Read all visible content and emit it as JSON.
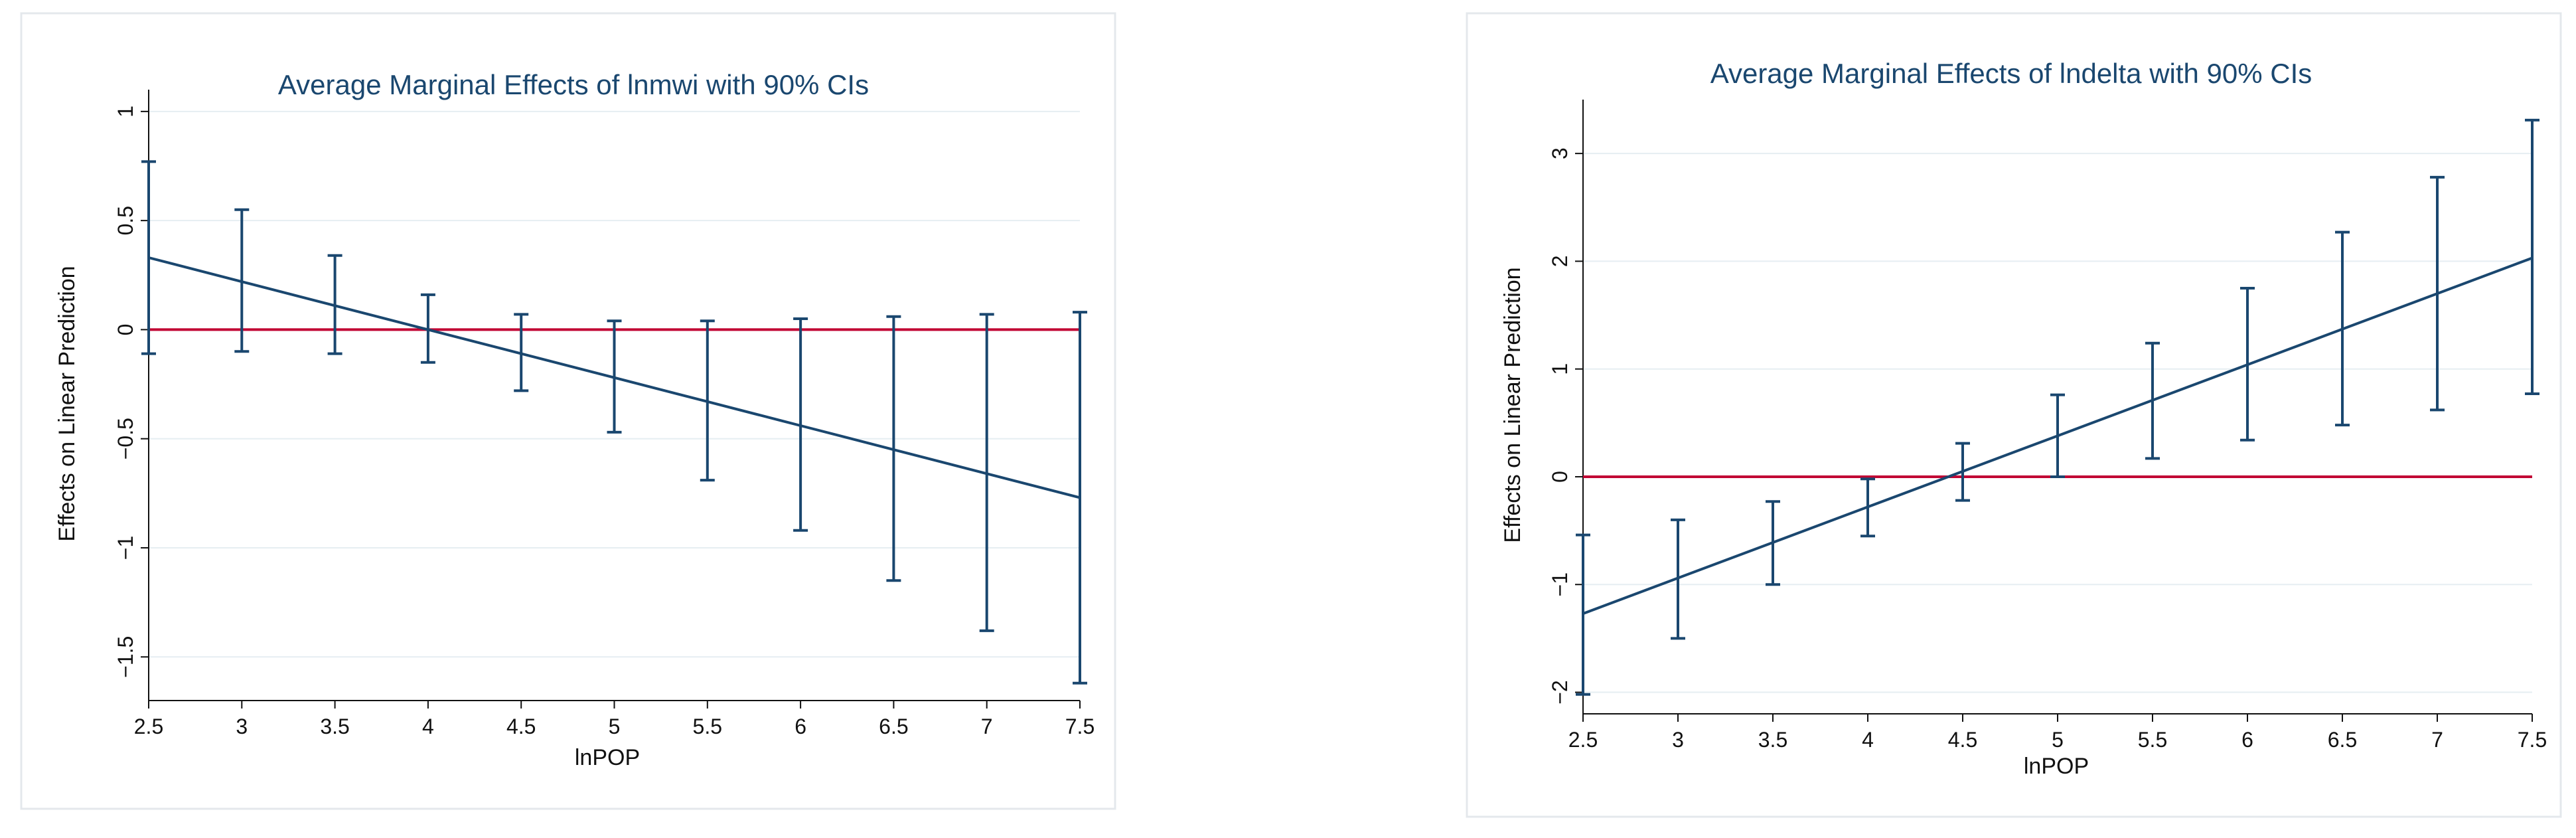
{
  "colors": {
    "series": "#1a476f",
    "reference": "#c10534",
    "title": "#1a476f"
  },
  "chart_data": [
    {
      "type": "line",
      "title": "Average Marginal Effects of lnmwi with 90% CIs",
      "xlabel": "lnPOP",
      "ylabel": "Effects on Linear Prediction",
      "xlim": [
        2.5,
        7.5
      ],
      "ylim": [
        -1.7,
        1.1
      ],
      "x_ticks": [
        2.5,
        3,
        3.5,
        4,
        4.5,
        5,
        5.5,
        6,
        6.5,
        7,
        7.5
      ],
      "x_tick_labels": [
        "2.5",
        "3",
        "3.5",
        "4",
        "4.5",
        "5",
        "5.5",
        "6",
        "6.5",
        "7",
        "7.5"
      ],
      "y_ticks": [
        -1.5,
        -1,
        -0.5,
        0,
        0.5,
        1
      ],
      "y_tick_labels": [
        "−1.5",
        "−1",
        "−0.5",
        "0",
        "0.5",
        "1"
      ],
      "reference_line_y": 0,
      "x": [
        2.5,
        3,
        3.5,
        4,
        4.5,
        5,
        5.5,
        6,
        6.5,
        7,
        7.5
      ],
      "estimate": [
        0.33,
        0.22,
        0.11,
        0.0,
        -0.11,
        -0.22,
        -0.33,
        -0.44,
        -0.55,
        -0.66,
        -0.77
      ],
      "ci_lower": [
        -0.11,
        -0.1,
        -0.11,
        -0.15,
        -0.28,
        -0.47,
        -0.69,
        -0.92,
        -1.15,
        -1.38,
        -1.62
      ],
      "ci_upper": [
        0.77,
        0.55,
        0.34,
        0.16,
        0.07,
        0.04,
        0.04,
        0.05,
        0.06,
        0.07,
        0.08
      ]
    },
    {
      "type": "line",
      "title": "Average Marginal Effects of lndelta with 90% CIs",
      "xlabel": "lnPOP",
      "ylabel": "Effects on Linear Prediction",
      "xlim": [
        2.5,
        7.5
      ],
      "ylim": [
        -2.2,
        3.5
      ],
      "x_ticks": [
        2.5,
        3,
        3.5,
        4,
        4.5,
        5,
        5.5,
        6,
        6.5,
        7,
        7.5
      ],
      "x_tick_labels": [
        "2.5",
        "3",
        "3.5",
        "4",
        "4.5",
        "5",
        "5.5",
        "6",
        "6.5",
        "7",
        "7.5"
      ],
      "y_ticks": [
        -2,
        -1,
        0,
        1,
        2,
        3
      ],
      "y_tick_labels": [
        "−2",
        "−1",
        "0",
        "1",
        "2",
        "3"
      ],
      "reference_line_y": 0,
      "x": [
        2.5,
        3,
        3.5,
        4,
        4.5,
        5,
        5.5,
        6,
        6.5,
        7,
        7.5
      ],
      "estimate": [
        -1.27,
        -0.94,
        -0.61,
        -0.28,
        0.05,
        0.38,
        0.71,
        1.04,
        1.37,
        1.7,
        2.03
      ],
      "ci_lower": [
        -2.02,
        -1.5,
        -1.0,
        -0.55,
        -0.22,
        0.0,
        0.17,
        0.34,
        0.48,
        0.62,
        0.77
      ],
      "ci_upper": [
        -0.54,
        -0.4,
        -0.23,
        -0.02,
        0.31,
        0.76,
        1.24,
        1.75,
        2.27,
        2.78,
        3.31
      ]
    }
  ]
}
